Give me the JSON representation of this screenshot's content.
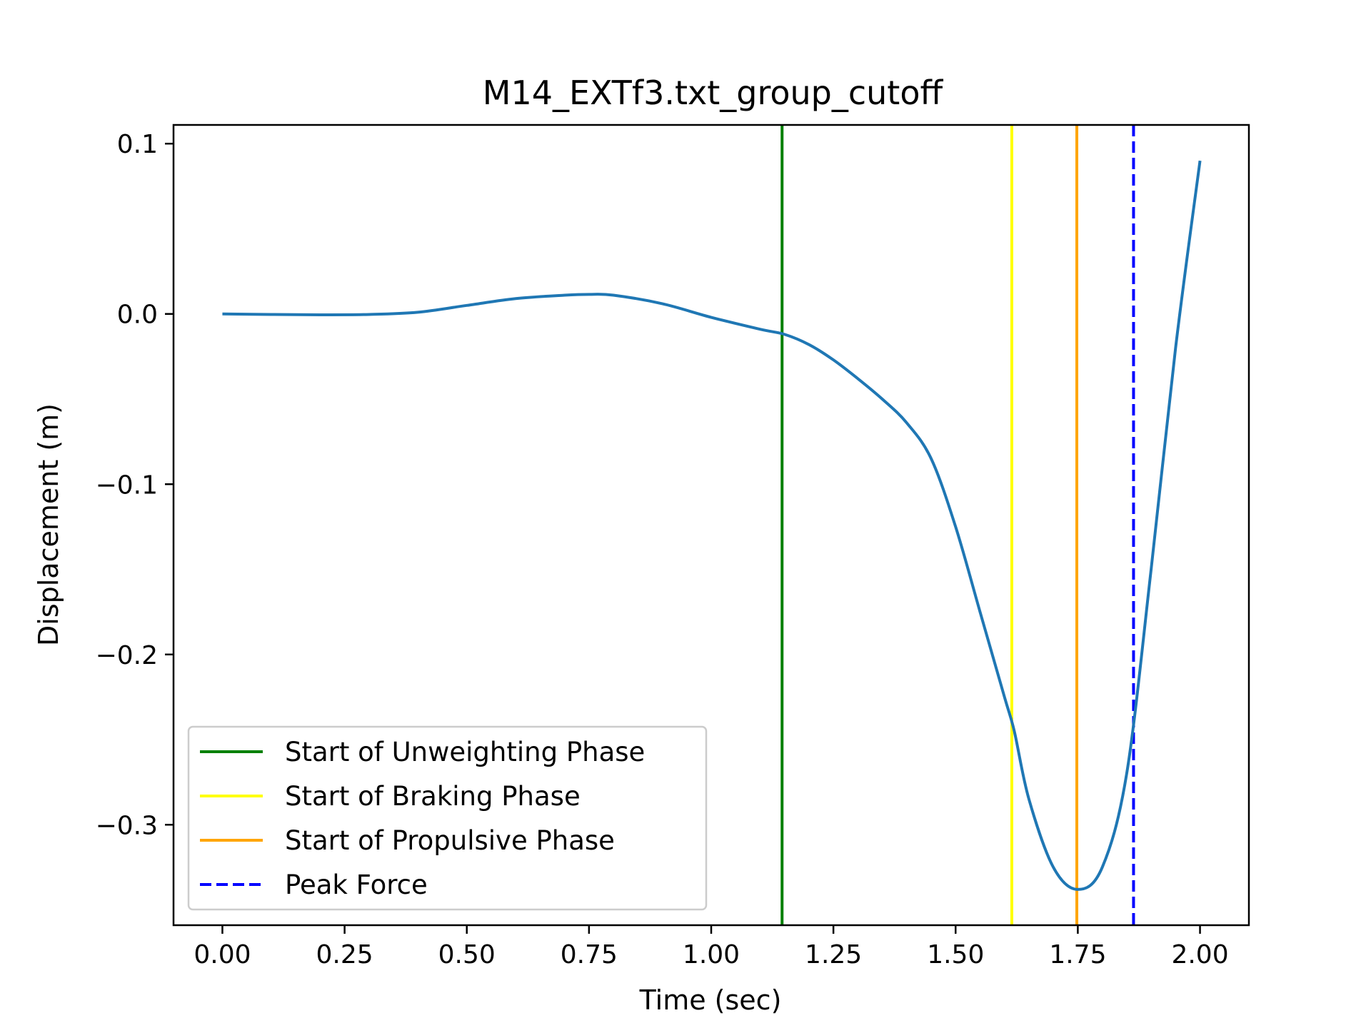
{
  "chart_data": {
    "type": "line",
    "title": "M14_EXTf3.txt_group_cutoff",
    "xlabel": "Time (sec)",
    "ylabel": "Displacement (m)",
    "xlim": [
      -0.1,
      2.1
    ],
    "ylim": [
      -0.359,
      0.111
    ],
    "x_ticks": [
      0.0,
      0.25,
      0.5,
      0.75,
      1.0,
      1.25,
      1.5,
      1.75,
      2.0
    ],
    "x_tick_labels": [
      "0.00",
      "0.25",
      "0.50",
      "0.75",
      "1.00",
      "1.25",
      "1.50",
      "1.75",
      "2.00"
    ],
    "y_ticks": [
      0.1,
      0.0,
      -0.1,
      -0.2,
      -0.3
    ],
    "y_tick_labels": [
      "0.1",
      "0.0",
      "−0.1",
      "−0.2",
      "−0.3"
    ],
    "grid": false,
    "legend_position": "lower-left",
    "series": [
      {
        "color": "#1f77b4",
        "x": [
          0.0,
          0.1,
          0.2,
          0.3,
          0.4,
          0.5,
          0.6,
          0.7,
          0.75,
          0.8,
          0.9,
          1.0,
          1.1,
          1.15,
          1.2,
          1.25,
          1.3,
          1.35,
          1.4,
          1.45,
          1.5,
          1.55,
          1.6,
          1.62,
          1.65,
          1.7,
          1.75,
          1.8,
          1.85,
          1.9,
          1.95,
          2.0
        ],
        "y": [
          0.0,
          -0.0003,
          -0.0005,
          -0.0003,
          0.001,
          0.005,
          0.009,
          0.011,
          0.0115,
          0.011,
          0.006,
          -0.002,
          -0.009,
          -0.012,
          -0.018,
          -0.027,
          -0.038,
          -0.05,
          -0.064,
          -0.085,
          -0.125,
          -0.175,
          -0.225,
          -0.245,
          -0.285,
          -0.325,
          -0.338,
          -0.325,
          -0.27,
          -0.15,
          -0.02,
          0.09
        ]
      }
    ],
    "vlines": [
      {
        "label": "Start of Unweighting Phase",
        "x": 1.145,
        "color": "#008000",
        "style": "solid"
      },
      {
        "label": "Start of Braking Phase",
        "x": 1.615,
        "color": "#ffff00",
        "style": "solid"
      },
      {
        "label": "Start of Propulsive Phase",
        "x": 1.748,
        "color": "#ffa500",
        "style": "solid"
      },
      {
        "label": "Peak Force",
        "x": 1.864,
        "color": "#0000ff",
        "style": "dashed"
      }
    ]
  }
}
